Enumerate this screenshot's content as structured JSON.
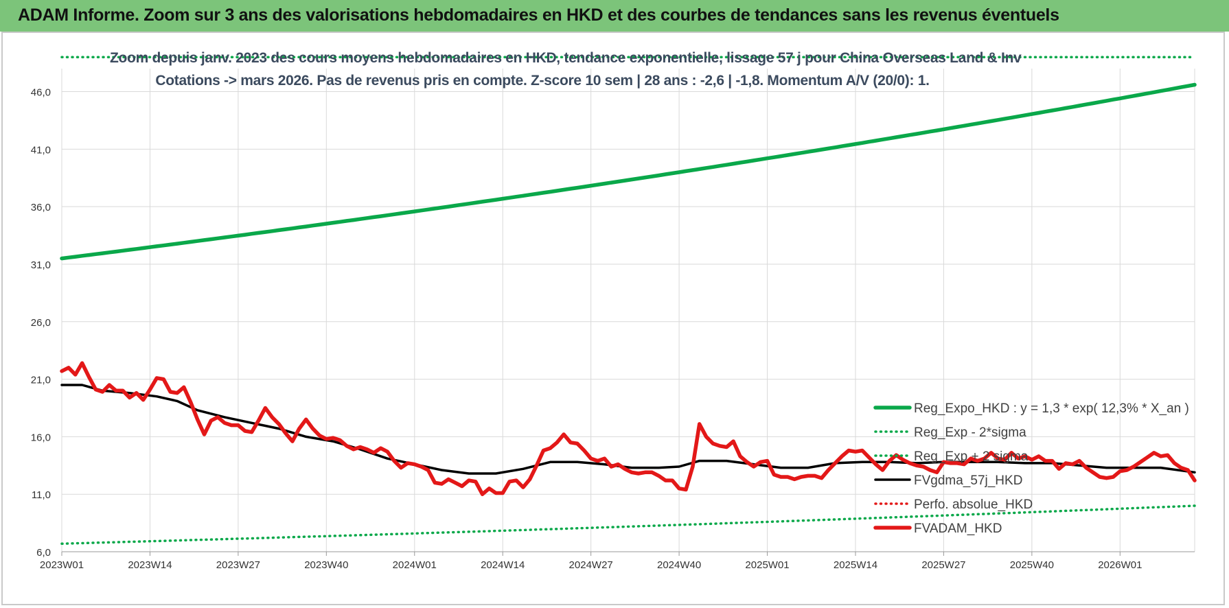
{
  "banner": {
    "title": "ADAM Informe. Zoom sur 3 ans des valorisations hebdomadaires en HKD et des courbes de tendances sans les revenus éventuels"
  },
  "colors": {
    "banner_bg": "#7cc47a",
    "reg_expo": "#0aa84a",
    "sigma": "#0aa84a",
    "fvgdma": "#000000",
    "perfo": "#e31818",
    "fvadam": "#e31818",
    "grid": "#d9d9d9",
    "subtitle": "#3b4a5e"
  },
  "chart_data": {
    "type": "line",
    "title": "Zoom depuis janv. 2023 des cours moyens hebdomadaires en HKD, tendance exponentielle, lissage 57 j pour China Overseas Land & Inv",
    "subtitle": "Cotations -> mars 2026. Pas de revenus pris en compte. Z-score 10 sem | 28 ans : -2,6 | -1,8. Momentum A/V (20/0): 1.",
    "xlabel": "",
    "ylabel": "",
    "ylim": [
      6.0,
      48.0
    ],
    "x_range": [
      0,
      167
    ],
    "yticks": [
      "6,0",
      "11,0",
      "16,0",
      "21,0",
      "26,0",
      "31,0",
      "36,0",
      "41,0",
      "46,0"
    ],
    "ytick_values": [
      6,
      11,
      16,
      21,
      26,
      31,
      36,
      41,
      46
    ],
    "xticks": [
      {
        "pos": 0,
        "label": "2023W01"
      },
      {
        "pos": 13,
        "label": "2023W14"
      },
      {
        "pos": 26,
        "label": "2023W27"
      },
      {
        "pos": 39,
        "label": "2023W40"
      },
      {
        "pos": 52,
        "label": "2024W01"
      },
      {
        "pos": 65,
        "label": "2024W14"
      },
      {
        "pos": 78,
        "label": "2024W27"
      },
      {
        "pos": 91,
        "label": "2024W40"
      },
      {
        "pos": 104,
        "label": "2025W01"
      },
      {
        "pos": 117,
        "label": "2025W14"
      },
      {
        "pos": 130,
        "label": "2025W27"
      },
      {
        "pos": 143,
        "label": "2025W40"
      },
      {
        "pos": 156,
        "label": "2026W01"
      }
    ],
    "grid": true,
    "legend_position": "bottom-right",
    "series": [
      {
        "name": "Reg_Expo_HKD : y = 1,3 * exp( 12,3% *  X_an )",
        "style": "solid-thick",
        "color": "#0aa84a",
        "x": [
          0,
          167
        ],
        "y": [
          31.5,
          46.6
        ],
        "curve": "exponential"
      },
      {
        "name": "Reg_Exp - 2*sigma",
        "style": "dotted",
        "color": "#0aa84a",
        "x": [
          0,
          167
        ],
        "y": [
          6.7,
          10.0
        ],
        "curve": "exponential"
      },
      {
        "name": "Reg_Exp + 2 sigma",
        "style": "dotted",
        "color": "#0aa84a",
        "x": [
          0,
          167
        ],
        "y": [
          49.0,
          49.0
        ],
        "curve": "linear"
      },
      {
        "name": "FVgdma_57j_HKD",
        "style": "solid",
        "color": "#000000",
        "x": [
          0,
          3,
          6,
          10,
          14,
          17,
          20,
          24,
          28,
          32,
          36,
          40,
          44,
          48,
          52,
          56,
          60,
          64,
          68,
          72,
          76,
          80,
          84,
          88,
          91,
          94,
          98,
          102,
          106,
          110,
          114,
          118,
          122,
          126,
          130,
          134,
          138,
          142,
          146,
          150,
          154,
          158,
          162,
          167
        ],
        "y": [
          20.5,
          20.5,
          20.0,
          19.8,
          19.5,
          19.1,
          18.3,
          17.7,
          17.2,
          16.7,
          16.0,
          15.6,
          14.9,
          14.1,
          13.6,
          13.1,
          12.8,
          12.8,
          13.2,
          13.8,
          13.8,
          13.6,
          13.3,
          13.3,
          13.4,
          13.9,
          13.9,
          13.6,
          13.3,
          13.3,
          13.7,
          13.8,
          13.8,
          13.7,
          13.8,
          13.8,
          13.8,
          13.7,
          13.7,
          13.5,
          13.3,
          13.3,
          13.3,
          12.9
        ]
      },
      {
        "name": "Perfo. absolue_HKD",
        "style": "dotted",
        "color": "#e31818",
        "x": [],
        "y": []
      },
      {
        "name": "FVADAM_HKD",
        "style": "solid-thick",
        "color": "#e31818",
        "x": [
          0,
          1,
          2,
          3,
          4,
          5,
          6,
          7,
          8,
          9,
          10,
          11,
          12,
          13,
          14,
          15,
          16,
          17,
          18,
          19,
          20,
          21,
          22,
          23,
          24,
          25,
          26,
          27,
          28,
          29,
          30,
          31,
          32,
          33,
          34,
          35,
          36,
          37,
          38,
          39,
          40,
          41,
          42,
          43,
          44,
          45,
          46,
          47,
          48,
          49,
          50,
          51,
          52,
          53,
          54,
          55,
          56,
          57,
          58,
          59,
          60,
          61,
          62,
          63,
          64,
          65,
          66,
          67,
          68,
          69,
          70,
          71,
          72,
          73,
          74,
          75,
          76,
          77,
          78,
          79,
          80,
          81,
          82,
          83,
          84,
          85,
          86,
          87,
          88,
          89,
          90,
          91,
          92,
          93,
          94,
          95,
          96,
          97,
          98,
          99,
          100,
          101,
          102,
          103,
          104,
          105,
          106,
          107,
          108,
          109,
          110,
          111,
          112,
          113,
          114,
          115,
          116,
          117,
          118,
          119,
          120,
          121,
          122,
          123,
          124,
          125,
          126,
          127,
          128,
          129,
          130,
          131,
          132,
          133,
          134,
          135,
          136,
          137,
          138,
          139,
          140,
          141,
          142,
          143,
          144,
          145,
          146,
          147,
          148,
          149,
          150,
          151,
          152,
          153,
          154,
          155,
          156,
          157,
          158,
          159,
          160,
          161,
          162,
          163,
          164,
          165,
          166,
          167
        ],
        "y": [
          21.7,
          22.0,
          21.4,
          22.4,
          21.2,
          20.1,
          19.9,
          20.5,
          20.0,
          20.0,
          19.4,
          19.8,
          19.2,
          20.1,
          21.1,
          21.0,
          19.9,
          19.8,
          20.3,
          19.0,
          17.5,
          16.2,
          17.4,
          17.7,
          17.2,
          17.0,
          17.0,
          16.5,
          16.4,
          17.4,
          18.5,
          17.7,
          17.1,
          16.3,
          15.6,
          16.7,
          17.5,
          16.7,
          16.1,
          15.8,
          15.9,
          15.7,
          15.2,
          14.9,
          15.1,
          14.9,
          14.6,
          15.0,
          14.7,
          13.9,
          13.3,
          13.7,
          13.6,
          13.4,
          13.1,
          12.0,
          11.9,
          12.3,
          12.0,
          11.7,
          12.2,
          12.1,
          11.0,
          11.5,
          11.1,
          11.1,
          12.1,
          12.2,
          11.6,
          12.3,
          13.5,
          14.8,
          15.0,
          15.5,
          16.2,
          15.5,
          15.4,
          14.8,
          14.1,
          13.9,
          14.1,
          13.4,
          13.6,
          13.2,
          12.9,
          12.8,
          12.9,
          12.9,
          12.6,
          12.2,
          12.2,
          11.5,
          11.4,
          13.4,
          17.1,
          16.0,
          15.4,
          15.2,
          15.1,
          15.6,
          14.3,
          13.8,
          13.4,
          13.8,
          13.9,
          12.7,
          12.5,
          12.5,
          12.3,
          12.5,
          12.6,
          12.6,
          12.4,
          13.1,
          13.7,
          14.3,
          14.8,
          14.7,
          14.8,
          14.2,
          13.6,
          13.1,
          13.9,
          14.4,
          14.0,
          13.7,
          13.5,
          13.4,
          13.1,
          12.9,
          13.8,
          13.7,
          13.7,
          13.6,
          14.1,
          13.9,
          14.1,
          14.6,
          14.1,
          14.0,
          14.6,
          14.1,
          14.3,
          14.0,
          14.3,
          13.9,
          13.9,
          13.2,
          13.7,
          13.6,
          13.9,
          13.3,
          12.9,
          12.5,
          12.4,
          12.5,
          13.0,
          13.1,
          13.4,
          13.8,
          14.2,
          14.6,
          14.3,
          14.4,
          13.7,
          13.3,
          13.1,
          12.2
        ]
      }
    ]
  }
}
